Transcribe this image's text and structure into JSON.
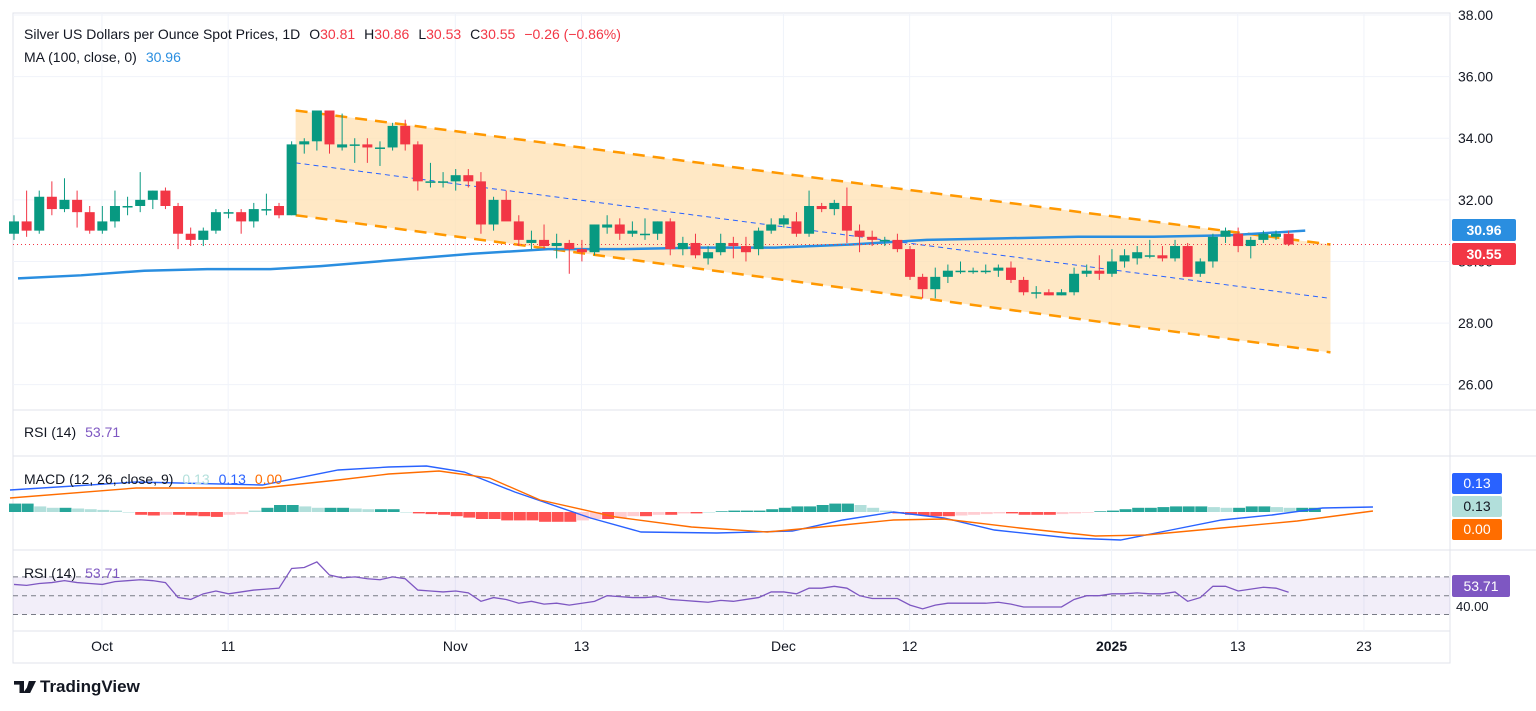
{
  "header": {
    "title": "Silver US Dollars per Ounce Spot Prices, 1D",
    "o_label": "O",
    "o_value": "30.81",
    "h_label": "H",
    "h_value": "30.86",
    "l_label": "L",
    "l_value": "30.53",
    "c_label": "C",
    "c_value": "30.55",
    "change": "−0.26 (−0.86%)",
    "ma_label": "MA (100, close, 0)",
    "ma_value": "30.96"
  },
  "colors": {
    "up": "#089981",
    "down": "#f23645",
    "ma": "#2a8ee0",
    "channel": "#ff9800",
    "macd_signal": "#ff6d00",
    "rsi": "#7e57c2"
  },
  "brand": {
    "name": "TradingView",
    "icon": "tradingview-logo-icon"
  },
  "price_badges": {
    "ma": "30.96",
    "close": "30.55"
  },
  "rsi_header": {
    "label": "RSI (14)",
    "value": "53.71"
  },
  "macd_header": {
    "label": "MACD (12, 26, close, 9)",
    "hist": "0.13",
    "macd": "0.13",
    "signal": "0.00"
  },
  "macd_badges": [
    "0.13",
    "0.13",
    "0.00"
  ],
  "rsi_pane": {
    "label": "RSI (14)",
    "value": "53.71",
    "badge": "53.71",
    "axis_label": "40.00"
  },
  "chart_data": [
    {
      "type": "candlestick",
      "title": "Silver US Dollars per Ounce Spot Prices, 1D",
      "y_ticks": [
        "38.00",
        "36.00",
        "34.00",
        "32.00",
        "30.00",
        "28.00",
        "26.00"
      ],
      "ylim": [
        25.6,
        38.0
      ],
      "x_ticks": [
        "Oct",
        "11",
        "Nov",
        "13",
        "Dec",
        "12",
        "2025",
        "13",
        "23"
      ],
      "candles": [
        [
          30.9,
          31.5,
          30.7,
          31.3
        ],
        [
          31.3,
          32.3,
          30.8,
          31.0
        ],
        [
          31.0,
          32.3,
          30.9,
          32.1
        ],
        [
          32.1,
          32.6,
          31.5,
          31.7
        ],
        [
          31.7,
          32.7,
          31.6,
          32.0
        ],
        [
          32.0,
          32.3,
          31.1,
          31.6
        ],
        [
          31.6,
          31.8,
          30.9,
          31.0
        ],
        [
          31.0,
          31.8,
          30.9,
          31.3
        ],
        [
          31.3,
          32.3,
          31.1,
          31.8
        ],
        [
          31.8,
          32.1,
          31.5,
          31.8
        ],
        [
          31.8,
          32.9,
          31.6,
          32.0
        ],
        [
          32.0,
          32.3,
          31.7,
          32.3
        ],
        [
          32.3,
          32.4,
          31.7,
          31.8
        ],
        [
          31.8,
          31.9,
          30.4,
          30.9
        ],
        [
          30.9,
          31.1,
          30.5,
          30.7
        ],
        [
          30.7,
          31.1,
          30.5,
          31.0
        ],
        [
          31.0,
          31.7,
          30.9,
          31.6
        ],
        [
          31.6,
          31.7,
          31.4,
          31.6
        ],
        [
          31.6,
          31.7,
          30.9,
          31.3
        ],
        [
          31.3,
          31.9,
          31.1,
          31.7
        ],
        [
          31.7,
          32.2,
          31.5,
          31.7
        ],
        [
          31.8,
          31.9,
          31.4,
          31.5
        ],
        [
          31.5,
          33.9,
          31.5,
          33.8
        ],
        [
          33.8,
          34.0,
          33.5,
          33.9
        ],
        [
          33.9,
          34.9,
          33.6,
          34.9
        ],
        [
          34.9,
          34.9,
          33.5,
          33.8
        ],
        [
          33.7,
          34.8,
          33.6,
          33.8
        ],
        [
          33.8,
          34.0,
          33.2,
          33.8
        ],
        [
          33.8,
          34.0,
          33.2,
          33.7
        ],
        [
          33.7,
          33.9,
          33.1,
          33.7
        ],
        [
          33.7,
          34.5,
          33.6,
          34.4
        ],
        [
          34.4,
          34.6,
          33.6,
          33.8
        ],
        [
          33.8,
          33.9,
          32.3,
          32.6
        ],
        [
          32.6,
          33.2,
          32.4,
          32.6
        ],
        [
          32.6,
          32.9,
          32.4,
          32.6
        ],
        [
          32.6,
          33.0,
          32.3,
          32.8
        ],
        [
          32.8,
          33.0,
          32.4,
          32.6
        ],
        [
          32.6,
          32.9,
          30.9,
          31.2
        ],
        [
          31.2,
          32.1,
          31.0,
          32.0
        ],
        [
          32.0,
          32.3,
          31.4,
          31.3
        ],
        [
          31.3,
          31.5,
          30.5,
          30.7
        ],
        [
          30.6,
          31.0,
          30.4,
          30.7
        ],
        [
          30.7,
          31.2,
          30.4,
          30.5
        ],
        [
          30.5,
          30.9,
          30.1,
          30.6
        ],
        [
          30.6,
          30.7,
          29.6,
          30.4
        ],
        [
          30.4,
          30.7,
          30.0,
          30.3
        ],
        [
          30.3,
          31.2,
          30.2,
          31.2
        ],
        [
          31.1,
          31.5,
          30.9,
          31.2
        ],
        [
          31.2,
          31.4,
          30.7,
          30.9
        ],
        [
          30.9,
          31.3,
          30.8,
          31.0
        ],
        [
          30.9,
          31.4,
          30.7,
          30.9
        ],
        [
          30.9,
          31.3,
          30.7,
          31.3
        ],
        [
          31.3,
          31.4,
          30.2,
          30.4
        ],
        [
          30.4,
          30.8,
          30.2,
          30.6
        ],
        [
          30.6,
          30.9,
          30.1,
          30.2
        ],
        [
          30.1,
          30.5,
          29.9,
          30.3
        ],
        [
          30.3,
          30.9,
          30.2,
          30.6
        ],
        [
          30.6,
          30.8,
          30.1,
          30.5
        ],
        [
          30.5,
          30.8,
          30.0,
          30.3
        ],
        [
          30.4,
          31.1,
          30.2,
          31.0
        ],
        [
          31.0,
          31.4,
          30.9,
          31.2
        ],
        [
          31.2,
          31.5,
          31.1,
          31.4
        ],
        [
          31.3,
          31.6,
          30.8,
          30.9
        ],
        [
          30.9,
          32.3,
          30.8,
          31.8
        ],
        [
          31.8,
          31.9,
          31.6,
          31.7
        ],
        [
          31.7,
          32.0,
          31.5,
          31.9
        ],
        [
          31.8,
          32.4,
          30.6,
          31.0
        ],
        [
          31.0,
          31.2,
          30.3,
          30.8
        ],
        [
          30.8,
          31.0,
          30.5,
          30.7
        ],
        [
          30.7,
          30.8,
          30.5,
          30.7
        ],
        [
          30.7,
          30.9,
          30.3,
          30.4
        ],
        [
          30.4,
          30.5,
          29.4,
          29.5
        ],
        [
          29.5,
          29.6,
          28.8,
          29.1
        ],
        [
          29.1,
          29.8,
          28.8,
          29.5
        ],
        [
          29.5,
          29.9,
          29.3,
          29.7
        ],
        [
          29.7,
          30.0,
          29.6,
          29.7
        ],
        [
          29.7,
          29.8,
          29.6,
          29.7
        ],
        [
          29.7,
          29.9,
          29.6,
          29.7
        ],
        [
          29.7,
          29.9,
          29.5,
          29.8
        ],
        [
          29.8,
          30.0,
          29.3,
          29.4
        ],
        [
          29.4,
          29.5,
          28.9,
          29.0
        ],
        [
          29.0,
          29.2,
          28.8,
          29.0
        ],
        [
          29.0,
          29.1,
          28.9,
          28.9
        ],
        [
          28.9,
          29.1,
          28.9,
          29.0
        ],
        [
          29.0,
          29.8,
          28.9,
          29.6
        ],
        [
          29.6,
          29.9,
          29.5,
          29.7
        ],
        [
          29.7,
          30.2,
          29.4,
          29.6
        ],
        [
          29.6,
          30.4,
          29.5,
          30.0
        ],
        [
          30.0,
          30.4,
          29.8,
          30.2
        ],
        [
          30.1,
          30.5,
          29.9,
          30.3
        ],
        [
          30.2,
          30.7,
          30.1,
          30.2
        ],
        [
          30.2,
          30.5,
          30.0,
          30.1
        ],
        [
          30.1,
          30.7,
          30.0,
          30.5
        ],
        [
          30.5,
          30.6,
          29.5,
          29.5
        ],
        [
          29.6,
          30.1,
          29.5,
          30.0
        ],
        [
          30.0,
          30.9,
          29.8,
          30.8
        ],
        [
          30.8,
          31.1,
          30.6,
          31.0
        ],
        [
          30.9,
          31.1,
          30.3,
          30.5
        ],
        [
          30.5,
          30.8,
          30.1,
          30.7
        ],
        [
          30.7,
          31.0,
          30.6,
          30.9
        ],
        [
          30.8,
          31.0,
          30.7,
          30.9
        ],
        [
          30.9,
          31.0,
          30.5,
          30.55
        ]
      ],
      "ma100": [
        [
          0,
          29.45
        ],
        [
          5,
          29.55
        ],
        [
          10,
          29.7
        ],
        [
          15,
          29.75
        ],
        [
          20,
          29.75
        ],
        [
          24,
          29.85
        ],
        [
          30,
          30.05
        ],
        [
          36,
          30.25
        ],
        [
          42,
          30.4
        ],
        [
          48,
          30.4
        ],
        [
          54,
          30.45
        ],
        [
          60,
          30.45
        ],
        [
          66,
          30.55
        ],
        [
          72,
          30.7
        ],
        [
          78,
          30.75
        ],
        [
          84,
          30.8
        ],
        [
          90,
          30.8
        ],
        [
          96,
          30.85
        ],
        [
          100,
          30.95
        ],
        [
          102,
          31.0
        ]
      ],
      "channel": {
        "upper": [
          [
            22,
            34.9
          ],
          [
            104,
            30.55
          ]
        ],
        "lower": [
          [
            22,
            31.5
          ],
          [
            104,
            27.05
          ]
        ],
        "mid": [
          [
            22,
            33.2
          ],
          [
            104,
            28.8
          ]
        ]
      }
    },
    {
      "type": "line",
      "title": "MACD (12, 26, close, 9)",
      "series_values": {
        "macd": "0.13",
        "signal": "0.00",
        "histogram": "0.13"
      }
    },
    {
      "type": "line",
      "title": "RSI (14)",
      "ylim": [
        22,
        88
      ],
      "levels": [
        70,
        50,
        30
      ],
      "value": "53.71"
    }
  ]
}
